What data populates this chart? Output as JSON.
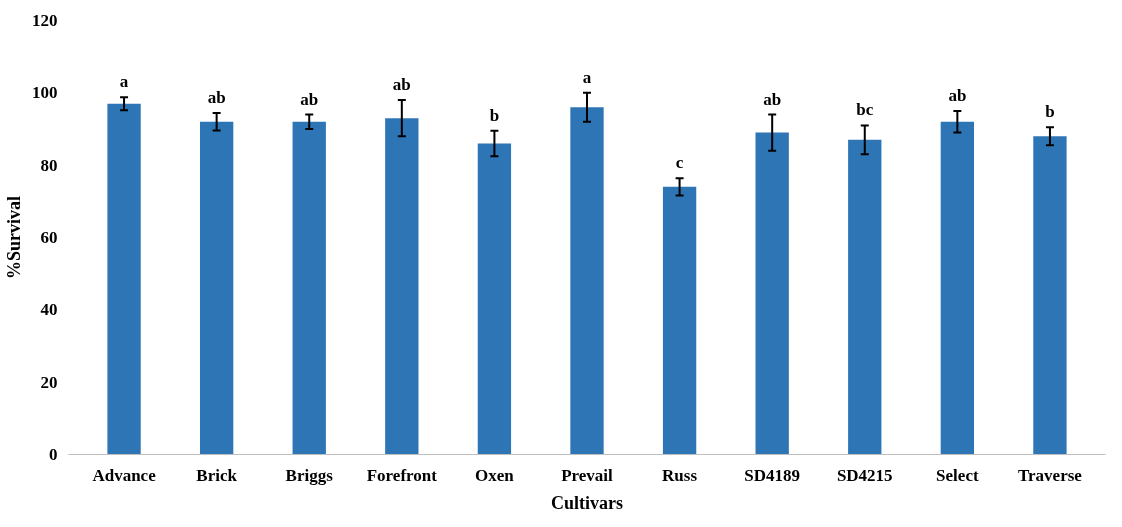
{
  "chart_data": {
    "type": "bar",
    "xlabel": "Cultivars",
    "ylabel": "%Survival",
    "categories": [
      "Advance",
      "Brick",
      "Briggs",
      "Forefront",
      "Oxen",
      "Prevail",
      "Russ",
      "SD4189",
      "SD4215",
      "Select",
      "Traverse"
    ],
    "values": [
      97,
      92,
      92,
      93,
      86,
      96,
      74,
      89,
      87,
      92,
      88
    ],
    "errors": [
      1.8,
      2.4,
      2,
      5,
      3.5,
      4,
      2.4,
      5,
      4,
      3,
      2.5
    ],
    "color": "#2e75b6",
    "ylim": [
      0,
      120
    ],
    "yticks": [
      0,
      20,
      40,
      60,
      80,
      100,
      120
    ],
    "grid": false,
    "annotations": [
      {
        "text": "a",
        "x": "Advance",
        "y": 98.8
      },
      {
        "text": "ab",
        "x": "Brick",
        "y": 94.4
      },
      {
        "text": "ab",
        "x": "Briggs",
        "y": 94
      },
      {
        "text": "ab",
        "x": "Forefront",
        "y": 98
      },
      {
        "text": "b",
        "x": "Oxen",
        "y": 89.5
      },
      {
        "text": "a",
        "x": "Prevail",
        "y": 100
      },
      {
        "text": "c",
        "x": "Russ",
        "y": 76.4
      },
      {
        "text": "ab",
        "x": "SD4189",
        "y": 94
      },
      {
        "text": "bc",
        "x": "SD4215",
        "y": 91
      },
      {
        "text": "ab",
        "x": "Select",
        "y": 95
      },
      {
        "text": "b",
        "x": "Traverse",
        "y": 90.5
      }
    ]
  }
}
